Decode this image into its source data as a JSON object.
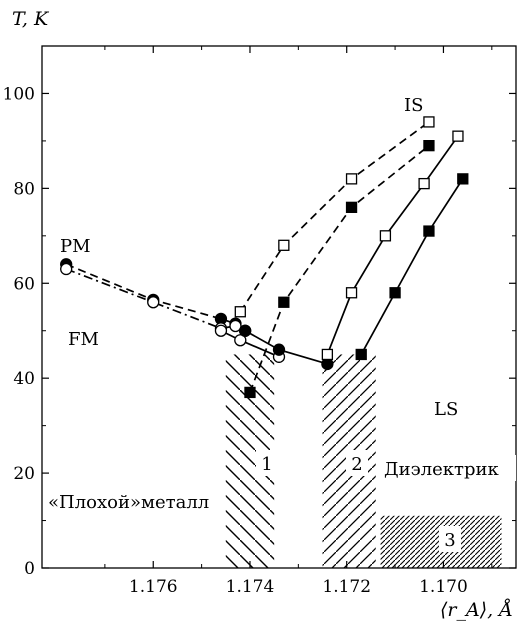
{
  "chart_data": {
    "type": "line",
    "title": "",
    "ylabel": "T, K",
    "xlabel": "⟨r_A⟩, Å",
    "xlim": [
      1.1783,
      1.1685
    ],
    "ylim": [
      0,
      110
    ],
    "x_ticks": [
      "1.176",
      "1.174",
      "1.172",
      "1.170"
    ],
    "x_tick_values": [
      1.176,
      1.174,
      1.172,
      1.17
    ],
    "y_ticks": [
      "0",
      "20",
      "40",
      "60",
      "80",
      "100"
    ],
    "y_tick_values": [
      0,
      20,
      40,
      60,
      80,
      100
    ],
    "grid": false,
    "series": [
      {
        "marker": "filled-circle",
        "line": "dashed",
        "points": [
          [
            1.1778,
            64
          ],
          [
            1.176,
            56.5
          ],
          [
            1.1746,
            52.5
          ],
          [
            1.1743,
            51.5
          ],
          [
            1.1741,
            50
          ]
        ]
      },
      {
        "marker": "open-circle",
        "line": "dash-dot",
        "points": [
          [
            1.1778,
            63
          ],
          [
            1.176,
            56
          ],
          [
            1.1746,
            50.5
          ],
          [
            1.1743,
            51
          ]
        ]
      },
      {
        "marker": "open-circle",
        "line": "solid",
        "points": [
          [
            1.1746,
            50
          ],
          [
            1.1742,
            48
          ],
          [
            1.1734,
            44.5
          ]
        ]
      },
      {
        "marker": "filled-circle",
        "line": "solid",
        "points": [
          [
            1.1741,
            50
          ],
          [
            1.1734,
            46
          ],
          [
            1.1724,
            43
          ]
        ]
      },
      {
        "marker": "open-square",
        "line": "dashed",
        "points": [
          [
            1.1742,
            54
          ],
          [
            1.1733,
            68
          ],
          [
            1.1719,
            82
          ],
          [
            1.1703,
            94
          ]
        ]
      },
      {
        "marker": "filled-square",
        "line": "dashed",
        "points": [
          [
            1.174,
            37
          ],
          [
            1.1733,
            56
          ],
          [
            1.1719,
            76
          ],
          [
            1.1703,
            89
          ]
        ]
      },
      {
        "marker": "open-square",
        "line": "solid",
        "points": [
          [
            1.1724,
            45
          ],
          [
            1.1719,
            58
          ],
          [
            1.1712,
            70
          ],
          [
            1.1704,
            81
          ],
          [
            1.1697,
            91
          ]
        ]
      },
      {
        "marker": "filled-square",
        "line": "solid",
        "points": [
          [
            1.1717,
            45
          ],
          [
            1.171,
            58
          ],
          [
            1.1703,
            71
          ],
          [
            1.1696,
            82
          ]
        ]
      }
    ],
    "annotations": {
      "pm": "PM",
      "fm": "FM",
      "is": "IS",
      "ls": "LS",
      "bad_metal": "«Плохой»металл",
      "dielectric": "Диэлектрик",
      "region_1": "1",
      "region_2": "2",
      "region_3": "3"
    },
    "hatched_regions": [
      {
        "label": "1",
        "x_range": [
          1.1745,
          1.1735
        ],
        "y_range": [
          0,
          45
        ]
      },
      {
        "label": "2",
        "x_range": [
          1.1725,
          1.1714
        ],
        "y_range": [
          0,
          45
        ]
      },
      {
        "label": "3",
        "x_range": [
          1.1713,
          1.1688
        ],
        "y_range": [
          0,
          11
        ]
      }
    ]
  }
}
